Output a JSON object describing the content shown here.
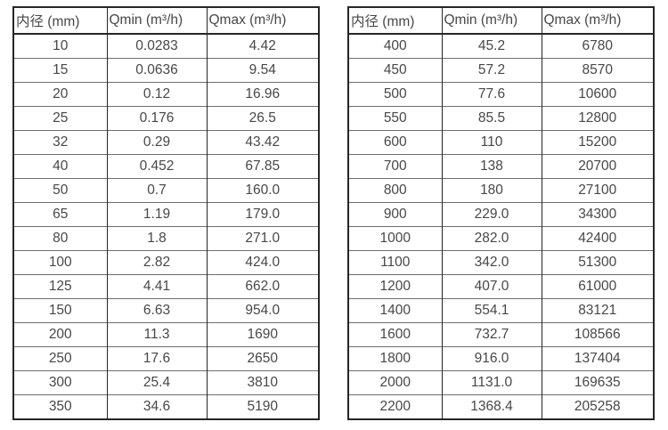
{
  "page": {
    "background_color": "#ffffff",
    "text_color": "#474747",
    "border_color": "#262626",
    "row_line_color": "#6e6e6e"
  },
  "tables": [
    {
      "name": "small-diameter-flow-table",
      "headers": [
        "内径 (mm)",
        "Qmin (m³/h)",
        "Qmax (m³/h)"
      ],
      "rows": [
        [
          "10",
          "0.0283",
          "4.42"
        ],
        [
          "15",
          "0.0636",
          "9.54"
        ],
        [
          "20",
          "0.12",
          "16.96"
        ],
        [
          "25",
          "0.176",
          "26.5"
        ],
        [
          "32",
          "0.29",
          "43.42"
        ],
        [
          "40",
          "0.452",
          "67.85"
        ],
        [
          "50",
          "0.7",
          "160.0"
        ],
        [
          "65",
          "1.19",
          "179.0"
        ],
        [
          "80",
          "1.8",
          "271.0"
        ],
        [
          "100",
          "2.82",
          "424.0"
        ],
        [
          "125",
          "4.41",
          "662.0"
        ],
        [
          "150",
          "6.63",
          "954.0"
        ],
        [
          "200",
          "11.3",
          "1690"
        ],
        [
          "250",
          "17.6",
          "2650"
        ],
        [
          "300",
          "25.4",
          "3810"
        ],
        [
          "350",
          "34.6",
          "5190"
        ]
      ]
    },
    {
      "name": "large-diameter-flow-table",
      "headers": [
        "内径 (mm)",
        "Qmin (m³/h)",
        "Qmax (m³/h)"
      ],
      "rows": [
        [
          "400",
          "45.2",
          "6780"
        ],
        [
          "450",
          "57.2",
          "8570"
        ],
        [
          "500",
          "77.6",
          "10600"
        ],
        [
          "550",
          "85.5",
          "12800"
        ],
        [
          "600",
          "110",
          "15200"
        ],
        [
          "700",
          "138",
          "20700"
        ],
        [
          "800",
          "180",
          "27100"
        ],
        [
          "900",
          "229.0",
          "34300"
        ],
        [
          "1000",
          "282.0",
          "42400"
        ],
        [
          "1100",
          "342.0",
          "51300"
        ],
        [
          "1200",
          "407.0",
          "61000"
        ],
        [
          "1400",
          "554.1",
          "83121"
        ],
        [
          "1600",
          "732.7",
          "108566"
        ],
        [
          "1800",
          "916.0",
          "137404"
        ],
        [
          "2000",
          "1131.0",
          "169635"
        ],
        [
          "2200",
          "1368.4",
          "205258"
        ]
      ]
    }
  ]
}
